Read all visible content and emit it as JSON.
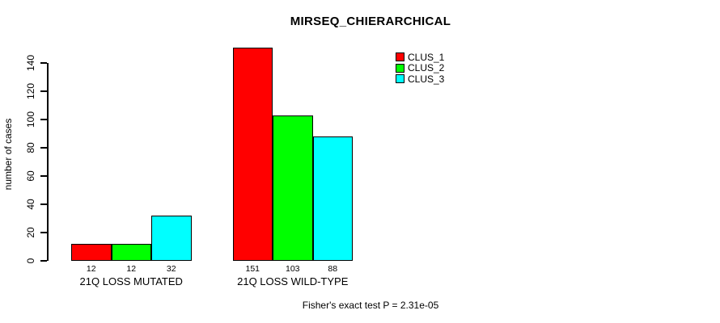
{
  "chart_data": {
    "type": "bar",
    "title": "MIRSEQ_CHIERARCHICAL",
    "ylabel": "number of cases",
    "xlabel": "",
    "categories": [
      "21Q LOSS MUTATED",
      "21Q LOSS WILD-TYPE"
    ],
    "series": [
      {
        "name": "CLUS_1",
        "color": "#ff0000",
        "values": [
          12,
          151
        ]
      },
      {
        "name": "CLUS_2",
        "color": "#00ff00",
        "values": [
          12,
          103
        ]
      },
      {
        "name": "CLUS_3",
        "color": "#00ffff",
        "values": [
          32,
          88
        ]
      }
    ],
    "bar_value_labels": [
      [
        "12",
        "12",
        "32"
      ],
      [
        "151",
        "103",
        "88"
      ]
    ],
    "yticks": [
      0,
      20,
      40,
      60,
      80,
      100,
      120,
      140
    ],
    "ylim": [
      0,
      151
    ],
    "grid": false,
    "legend_position": "top-right",
    "bar_border_color": "#000000",
    "annotation": "Fisher's exact test P = 2.31e-05"
  }
}
